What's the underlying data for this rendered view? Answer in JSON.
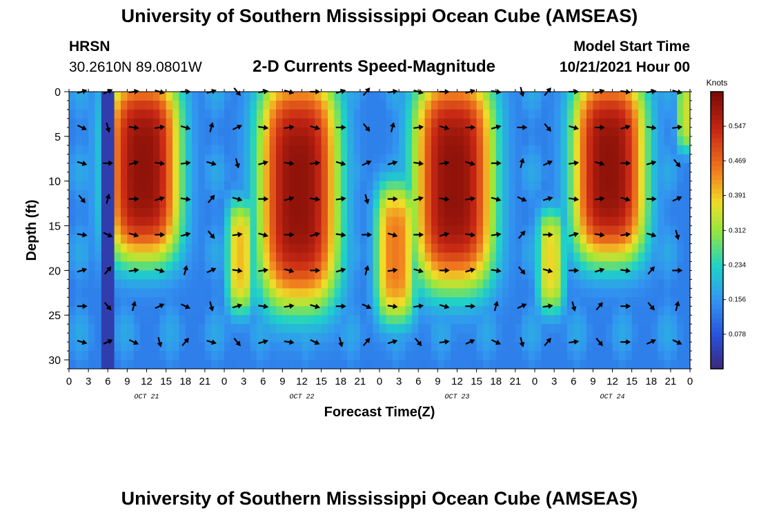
{
  "header": {
    "title": "University of Southern Mississippi Ocean Cube (AMSEAS)",
    "station": "HRSN",
    "coordinates": "30.2610N  89.0801W",
    "subtitle": "2-D Currents Speed-Magnitude",
    "model_start_label": "Model Start Time",
    "model_start_value": "10/21/2021 Hour 00"
  },
  "footer": {
    "title": "University of Southern Mississippi Ocean Cube (AMSEAS)"
  },
  "chart_data": {
    "type": "heatmap",
    "title": "2-D Currents Speed-Magnitude",
    "xlabel": "Forecast Time(Z)",
    "ylabel": "Depth (ft)",
    "xlim": [
      0,
      96
    ],
    "ylim": [
      31,
      0
    ],
    "x_ticks": [
      0,
      3,
      6,
      9,
      12,
      15,
      18,
      21,
      24,
      27,
      30,
      33,
      36,
      39,
      42,
      45,
      48,
      51,
      54,
      57,
      60,
      63,
      66,
      69,
      72,
      75,
      78,
      81,
      84,
      87,
      90,
      93,
      96
    ],
    "x_tick_labels": [
      "0",
      "3",
      "6",
      "9",
      "12",
      "15",
      "18",
      "21",
      "0",
      "3",
      "6",
      "9",
      "12",
      "15",
      "18",
      "21",
      "0",
      "3",
      "6",
      "9",
      "12",
      "15",
      "18",
      "21",
      "0",
      "3",
      "6",
      "9",
      "12",
      "15",
      "18",
      "21",
      "0"
    ],
    "date_labels": [
      {
        "x": 12,
        "label": "OCT 21"
      },
      {
        "x": 36,
        "label": "OCT 22"
      },
      {
        "x": 60,
        "label": "OCT 23"
      },
      {
        "x": 84,
        "label": "OCT 24"
      }
    ],
    "y_ticks": [
      0,
      5,
      10,
      15,
      20,
      25,
      30
    ],
    "y_tick_labels": [
      "0",
      "5",
      "10",
      "15",
      "20",
      "25",
      "30"
    ],
    "colorbar": {
      "label": "Knots",
      "range": [
        0,
        0.625
      ],
      "ticks": [
        0.078,
        0.156,
        0.234,
        0.312,
        0.391,
        0.469,
        0.547
      ],
      "tick_labels": [
        "0.078",
        "0.156",
        "0.234",
        "0.312",
        "0.391",
        "0.469",
        "0.547"
      ]
    },
    "high_speed_regions": [
      {
        "t_center": 11.5,
        "t_halfwidth": 5.5,
        "depth_top": 0,
        "depth_bottom": 17,
        "peak": 0.6
      },
      {
        "t_center": 35.5,
        "t_halfwidth": 6.0,
        "depth_top": 0,
        "depth_bottom": 22,
        "peak": 0.6
      },
      {
        "t_center": 59.5,
        "t_halfwidth": 6.0,
        "depth_top": 0,
        "depth_bottom": 20,
        "peak": 0.6
      },
      {
        "t_center": 83.5,
        "t_halfwidth": 5.5,
        "depth_top": 0,
        "depth_bottom": 17,
        "peak": 0.6
      },
      {
        "t_center": 26.5,
        "t_halfwidth": 2.0,
        "depth_top": 14,
        "depth_bottom": 23,
        "peak": 0.4
      },
      {
        "t_center": 50.5,
        "t_halfwidth": 3.0,
        "depth_top": 12,
        "depth_bottom": 24,
        "peak": 0.45
      },
      {
        "t_center": 74.5,
        "t_halfwidth": 2.0,
        "depth_top": 15,
        "depth_bottom": 23,
        "peak": 0.38
      },
      {
        "t_center": 95.5,
        "t_halfwidth": 1.5,
        "depth_top": 0,
        "depth_bottom": 5,
        "peak": 0.35
      }
    ],
    "arrow_depths": [
      0,
      4,
      8,
      12,
      16,
      20,
      24,
      28
    ],
    "arrow_times": [
      2,
      6,
      10,
      14,
      18,
      22,
      26,
      30,
      34,
      38,
      42,
      46,
      50,
      54,
      58,
      62,
      66,
      70,
      74,
      78,
      82,
      86,
      90,
      94
    ],
    "arrow_direction_note": "arrows point mostly eastward, southward near slack water"
  }
}
